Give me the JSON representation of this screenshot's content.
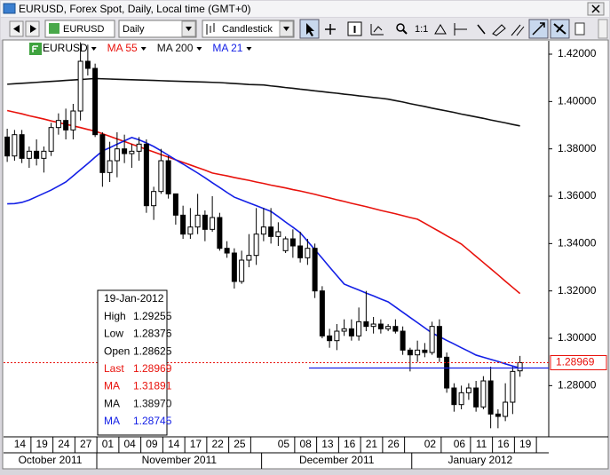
{
  "window": {
    "title": "EURUSD, Forex Spot, Daily, Local time (GMT+0)"
  },
  "toolbar": {
    "symbol": "EURUSD",
    "period": "Daily",
    "style": "Candlestick",
    "zoom": "1:1"
  },
  "chart_data": {
    "type": "candlestick",
    "symbol": "EURUSD",
    "categories": [
      null,
      "14",
      null,
      null,
      "19",
      null,
      null,
      "24",
      null,
      null,
      "27",
      null,
      null,
      "01",
      null,
      null,
      "04",
      null,
      null,
      "09",
      null,
      null,
      "14",
      null,
      null,
      "17",
      null,
      null,
      "22",
      null,
      null,
      "25",
      null,
      null,
      null,
      null,
      null,
      "05",
      null,
      null,
      "08",
      null,
      null,
      "13",
      null,
      null,
      "16",
      null,
      null,
      "21",
      null,
      null,
      "26",
      null,
      null,
      null,
      null,
      "02",
      null,
      null,
      null,
      "06",
      null,
      null,
      "11",
      null,
      null,
      "16",
      null,
      null,
      "19"
    ],
    "months": [
      "October 2011",
      "November 2011",
      "December 2011",
      "January 2012"
    ],
    "open": [
      1.385,
      1.377,
      1.386,
      1.376,
      1.379,
      1.376,
      1.379,
      1.389,
      1.392,
      1.388,
      1.396,
      1.417,
      1.414,
      1.386,
      1.37,
      1.375,
      1.38,
      1.378,
      1.379,
      1.382,
      1.356,
      1.362,
      1.375,
      1.361,
      1.352,
      1.344,
      1.347,
      1.352,
      1.346,
      1.351,
      1.338,
      1.336,
      1.324,
      1.333,
      1.335,
      1.344,
      1.347,
      1.343,
      1.337,
      1.342,
      1.339,
      1.334,
      1.338,
      1.32,
      1.301,
      1.299,
      1.303,
      1.304,
      1.301,
      1.307,
      1.305,
      1.306,
      1.304,
      1.305,
      1.303,
      1.295,
      1.293,
      1.295,
      1.294,
      1.305,
      1.292,
      1.279,
      1.272,
      1.277,
      1.279,
      1.271,
      1.282,
      1.268,
      1.267,
      1.273,
      1.28625
    ],
    "high": [
      1.3885,
      1.388,
      1.388,
      1.381,
      1.384,
      1.381,
      1.391,
      1.395,
      1.397,
      1.399,
      1.425,
      1.424,
      1.416,
      1.387,
      1.383,
      1.387,
      1.386,
      1.382,
      1.385,
      1.384,
      1.364,
      1.38,
      1.377,
      1.361,
      1.356,
      1.355,
      1.361,
      1.354,
      1.36,
      1.353,
      1.341,
      1.338,
      1.337,
      1.344,
      1.355,
      1.355,
      1.355,
      1.349,
      1.343,
      1.346,
      1.345,
      1.342,
      1.34,
      1.322,
      1.304,
      1.306,
      1.308,
      1.308,
      1.313,
      1.32,
      1.309,
      1.308,
      1.306,
      1.308,
      1.305,
      1.296,
      1.299,
      1.298,
      1.307,
      1.308,
      1.294,
      1.281,
      1.28,
      1.281,
      1.282,
      1.284,
      1.288,
      1.27,
      1.281,
      1.288,
      1.29255
    ],
    "low": [
      1.3745,
      1.375,
      1.374,
      1.372,
      1.373,
      1.37,
      1.377,
      1.386,
      1.384,
      1.384,
      1.392,
      1.411,
      1.385,
      1.364,
      1.366,
      1.368,
      1.374,
      1.372,
      1.375,
      1.353,
      1.35,
      1.361,
      1.359,
      1.348,
      1.342,
      1.342,
      1.344,
      1.341,
      1.345,
      1.337,
      1.334,
      1.321,
      1.323,
      1.33,
      1.331,
      1.341,
      1.34,
      1.339,
      1.336,
      1.334,
      1.332,
      1.331,
      1.317,
      1.3,
      1.296,
      1.295,
      1.301,
      1.299,
      1.299,
      1.303,
      1.302,
      1.302,
      1.303,
      1.302,
      1.293,
      1.286,
      1.29,
      1.292,
      1.293,
      1.29,
      1.277,
      1.269,
      1.27,
      1.274,
      1.269,
      1.27,
      1.262,
      1.262,
      1.265,
      1.268,
      1.28376
    ],
    "close": [
      1.377,
      1.386,
      1.376,
      1.379,
      1.376,
      1.379,
      1.389,
      1.392,
      1.388,
      1.396,
      1.417,
      1.414,
      1.386,
      1.37,
      1.375,
      1.38,
      1.378,
      1.379,
      1.382,
      1.356,
      1.362,
      1.375,
      1.361,
      1.352,
      1.344,
      1.347,
      1.352,
      1.346,
      1.351,
      1.338,
      1.336,
      1.324,
      1.333,
      1.335,
      1.344,
      1.347,
      1.343,
      1.345,
      1.342,
      1.339,
      1.334,
      1.338,
      1.32,
      1.301,
      1.299,
      1.303,
      1.304,
      1.301,
      1.307,
      1.305,
      1.306,
      1.304,
      1.305,
      1.303,
      1.295,
      1.293,
      1.295,
      1.294,
      1.305,
      1.292,
      1.279,
      1.272,
      1.277,
      1.279,
      1.271,
      1.282,
      1.268,
      1.267,
      1.273,
      1.286,
      1.28969
    ],
    "up_color": "#ffffff",
    "down_color": "#000000",
    "series": [
      {
        "name": "MA 55",
        "color": "#e8120c",
        "values": [
          1.3962,
          1.3955,
          1.3948,
          1.394,
          1.3933,
          1.3926,
          1.3918,
          1.3911,
          1.3904,
          1.3897,
          1.389,
          1.3882,
          1.3875,
          1.3864,
          1.3853,
          1.3842,
          1.3831,
          1.382,
          1.3809,
          1.3798,
          1.3787,
          1.3776,
          1.3765,
          1.3754,
          1.3743,
          1.3732,
          1.3721,
          1.371,
          1.3698,
          1.3692,
          1.3686,
          1.3679,
          1.3673,
          1.3667,
          1.366,
          1.3654,
          1.3647,
          1.3641,
          1.3635,
          1.3628,
          1.3622,
          1.3615,
          1.3608,
          1.36,
          1.3593,
          1.3585,
          1.3578,
          1.357,
          1.3563,
          1.3556,
          1.3548,
          1.354,
          1.3533,
          1.3526,
          1.3518,
          1.351,
          1.3503,
          1.3486,
          1.3468,
          1.3451,
          1.3433,
          1.3416,
          1.3398,
          1.3372,
          1.3346,
          1.332,
          1.3294,
          1.3268,
          1.3241,
          1.3215,
          1.31891
        ]
      },
      {
        "name": "MA 200",
        "color": "#111111",
        "values": [
          1.4073,
          1.4075,
          1.4077,
          1.4079,
          1.4081,
          1.4083,
          1.4085,
          1.4087,
          1.4089,
          1.4091,
          1.4093,
          1.4095,
          1.4097,
          1.4096,
          1.4095,
          1.4094,
          1.4093,
          1.4092,
          1.4091,
          1.409,
          1.4089,
          1.4088,
          1.4087,
          1.4086,
          1.4085,
          1.4084,
          1.4083,
          1.4082,
          1.4081,
          1.408,
          1.4078,
          1.4076,
          1.4074,
          1.4072,
          1.4071,
          1.407,
          1.4066,
          1.4063,
          1.4059,
          1.4056,
          1.4052,
          1.4049,
          1.4045,
          1.4042,
          1.4038,
          1.4035,
          1.4031,
          1.4028,
          1.4024,
          1.4021,
          1.4017,
          1.4014,
          1.401,
          1.4004,
          1.3998,
          1.3991,
          1.3985,
          1.3979,
          1.3972,
          1.3966,
          1.396,
          1.3954,
          1.3947,
          1.3941,
          1.3935,
          1.3929,
          1.3922,
          1.3916,
          1.391,
          1.3903,
          1.3897
        ]
      },
      {
        "name": "MA 21",
        "color": "#1420e6",
        "values": [
          1.3568,
          1.3569,
          1.3574,
          1.3584,
          1.3598,
          1.3612,
          1.3626,
          1.3643,
          1.366,
          1.3686,
          1.3712,
          1.3738,
          1.3765,
          1.3791,
          1.3805,
          1.382,
          1.3834,
          1.3848,
          1.3838,
          1.3825,
          1.381,
          1.3792,
          1.3773,
          1.3754,
          1.3736,
          1.3717,
          1.3698,
          1.3678,
          1.3657,
          1.3637,
          1.3616,
          1.3596,
          1.3584,
          1.3572,
          1.356,
          1.3548,
          1.3536,
          1.3514,
          1.3491,
          1.3469,
          1.3446,
          1.341,
          1.3374,
          1.3338,
          1.3301,
          1.3265,
          1.3229,
          1.3216,
          1.3204,
          1.3191,
          1.3179,
          1.3166,
          1.3154,
          1.3132,
          1.311,
          1.3088,
          1.3066,
          1.3044,
          1.3022,
          1.3007,
          1.2991,
          1.2976,
          1.296,
          1.2945,
          1.2929,
          1.292,
          1.2911,
          1.2902,
          1.2892,
          1.2883,
          1.28745
        ]
      }
    ],
    "ylim": [
      1.25838,
      1.42563
    ],
    "yticks": [
      {
        "value": 1.42,
        "label": "1.42000"
      },
      {
        "value": 1.4,
        "label": "1.40000"
      },
      {
        "value": 1.38,
        "label": "1.38000"
      },
      {
        "value": 1.36,
        "label": "1.36000"
      },
      {
        "value": 1.34,
        "label": "1.34000"
      },
      {
        "value": 1.32,
        "label": "1.32000"
      },
      {
        "value": 1.3,
        "label": "1.30000"
      },
      {
        "value": 1.28,
        "label": "1.28000"
      }
    ],
    "last_price": {
      "value": 1.28969,
      "label": "1.28969",
      "color": "#e8120c"
    },
    "horizontal_line": {
      "value": 1.28745,
      "color": "#1420e6"
    },
    "info_box": {
      "date": "19-Jan-2012",
      "rows": [
        {
          "label": "High",
          "value": "1.29255",
          "color": "#000000"
        },
        {
          "label": "Low",
          "value": "1.28376",
          "color": "#000000"
        },
        {
          "label": "Open",
          "value": "1.28625",
          "color": "#000000"
        },
        {
          "label": "Last",
          "value": "1.28969",
          "color": "#e8120c"
        },
        {
          "label": "MA",
          "value": "1.31891",
          "color": "#e8120c"
        },
        {
          "label": "MA",
          "value": "1.38970",
          "color": "#111111"
        },
        {
          "label": "MA",
          "value": "1.28745",
          "color": "#1420e6"
        }
      ]
    }
  }
}
